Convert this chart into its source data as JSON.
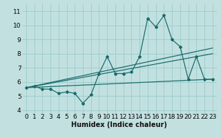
{
  "xlabel": "Humidex (Indice chaleur)",
  "background_color": "#c2e0e0",
  "grid_color": "#9ecece",
  "line_color": "#1a6b6b",
  "xlim": [
    -0.5,
    23.5
  ],
  "ylim": [
    3.8,
    11.5
  ],
  "yticks": [
    4,
    5,
    6,
    7,
    8,
    9,
    10,
    11
  ],
  "xticks": [
    0,
    1,
    2,
    3,
    4,
    5,
    6,
    7,
    8,
    9,
    10,
    11,
    12,
    13,
    14,
    15,
    16,
    17,
    18,
    19,
    20,
    21,
    22,
    23
  ],
  "series1_x": [
    0,
    1,
    2,
    3,
    4,
    5,
    6,
    7,
    8,
    9,
    10,
    11,
    12,
    13,
    14,
    15,
    16,
    17,
    18,
    19,
    20,
    21,
    22,
    23
  ],
  "series1_y": [
    5.6,
    5.7,
    5.5,
    5.5,
    5.2,
    5.3,
    5.2,
    4.5,
    5.1,
    6.6,
    7.8,
    6.6,
    6.6,
    6.7,
    7.8,
    10.5,
    9.9,
    10.7,
    9.0,
    8.5,
    6.2,
    7.8,
    6.2,
    6.2
  ],
  "series2_x": [
    0,
    23
  ],
  "series2_y": [
    5.6,
    6.2
  ],
  "series3_x": [
    0,
    23
  ],
  "series3_y": [
    5.6,
    8.4
  ],
  "series4_x": [
    0,
    23
  ],
  "series4_y": [
    5.6,
    8.0
  ],
  "fontsize_xlabel": 7,
  "fontsize_ticks": 6.5
}
